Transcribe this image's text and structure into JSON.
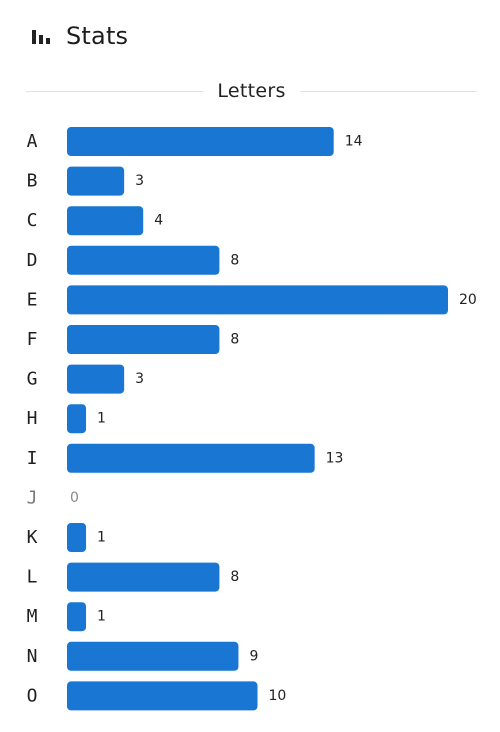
{
  "header": {
    "title": "Stats",
    "icon": "bar-chart-icon"
  },
  "chart_data": {
    "type": "bar",
    "orientation": "horizontal",
    "title": "Letters",
    "xlabel": "",
    "ylabel": "",
    "categories": [
      "A",
      "B",
      "C",
      "D",
      "E",
      "F",
      "G",
      "H",
      "I",
      "J",
      "K",
      "L",
      "M",
      "N",
      "O"
    ],
    "values": [
      14,
      3,
      4,
      8,
      20,
      8,
      3,
      1,
      13,
      0,
      1,
      8,
      1,
      9,
      10
    ],
    "xlim": [
      0,
      20
    ],
    "grid": false,
    "legend": "none",
    "bar_color": "#1976d2",
    "data_labels": true
  }
}
